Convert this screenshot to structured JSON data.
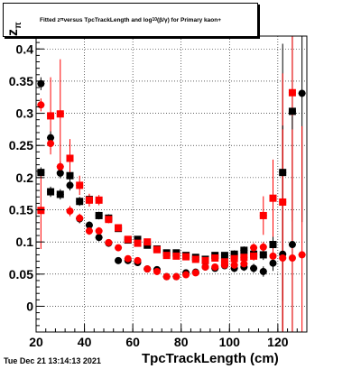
{
  "chart_data": {
    "type": "scatter",
    "title": "Fitted z_π versus TpcTrackLength and log10(β/γ) for Primary kaon+",
    "title_parts": {
      "lead": "Fitted  z",
      "sub": "π",
      "mid": "  versus TpcTrackLength and log",
      "sub2": "10",
      "tail": "(β/γ) for Primary kaon+"
    },
    "xlabel": "TpcTrackLength (cm)",
    "ylabel": "z_π",
    "ylabel_text": "z",
    "xlim": [
      20,
      132
    ],
    "ylim": [
      -0.04,
      0.42
    ],
    "x_ticks": [
      20,
      40,
      60,
      80,
      100,
      120
    ],
    "y_ticks": [
      0,
      0.05,
      0.1,
      0.15,
      0.2,
      0.25,
      0.3,
      0.35,
      0.4
    ],
    "y_tick_labels": [
      "0",
      "0.05",
      "0.1",
      "0.15",
      "0.2",
      "0.25",
      "0.3",
      "0.35",
      "0.4"
    ],
    "grid": true,
    "timestamp": "Tue Dec 21 13:14:13 2021",
    "series": [
      {
        "marker": "square",
        "color": "#000000",
        "points": [
          {
            "x": 22,
            "y": 0.208,
            "err": 0.008
          },
          {
            "x": 26,
            "y": 0.178,
            "err": 0.008
          },
          {
            "x": 30,
            "y": 0.174,
            "err": 0.008
          },
          {
            "x": 34,
            "y": 0.203,
            "err": 0.008
          },
          {
            "x": 38,
            "y": 0.163,
            "err": 0.007
          },
          {
            "x": 42,
            "y": 0.166,
            "err": 0.007
          },
          {
            "x": 46,
            "y": 0.141,
            "err": 0.006
          },
          {
            "x": 50,
            "y": 0.137,
            "err": 0.006
          },
          {
            "x": 54,
            "y": 0.121,
            "err": 0.005
          },
          {
            "x": 58,
            "y": 0.103,
            "err": 0.005
          },
          {
            "x": 62,
            "y": 0.104,
            "err": 0.005
          },
          {
            "x": 66,
            "y": 0.095,
            "err": 0.005
          },
          {
            "x": 70,
            "y": 0.089,
            "err": 0.005
          },
          {
            "x": 74,
            "y": 0.083,
            "err": 0.005
          },
          {
            "x": 78,
            "y": 0.083,
            "err": 0.005
          },
          {
            "x": 82,
            "y": 0.079,
            "err": 0.005
          },
          {
            "x": 86,
            "y": 0.076,
            "err": 0.005
          },
          {
            "x": 90,
            "y": 0.073,
            "err": 0.005
          },
          {
            "x": 94,
            "y": 0.079,
            "err": 0.005
          },
          {
            "x": 98,
            "y": 0.079,
            "err": 0.005
          },
          {
            "x": 102,
            "y": 0.081,
            "err": 0.006
          },
          {
            "x": 106,
            "y": 0.087,
            "err": 0.006
          },
          {
            "x": 110,
            "y": 0.081,
            "err": 0.007
          },
          {
            "x": 114,
            "y": 0.08,
            "err": 0.008
          },
          {
            "x": 118,
            "y": 0.096,
            "err": 0.012
          },
          {
            "x": 122,
            "y": 0.208,
            "err": 0.2
          },
          {
            "x": 126,
            "y": 0.303,
            "err": 0.2
          }
        ]
      },
      {
        "marker": "square",
        "color": "#ff0000",
        "points": [
          {
            "x": 22,
            "y": 0.149,
            "err": 0.06
          },
          {
            "x": 26,
            "y": 0.296,
            "err": 0.06
          },
          {
            "x": 30,
            "y": 0.299,
            "err": 0.085
          },
          {
            "x": 34,
            "y": 0.23,
            "err": 0.03
          },
          {
            "x": 38,
            "y": 0.188,
            "err": 0.015
          },
          {
            "x": 42,
            "y": 0.165,
            "err": 0.01
          },
          {
            "x": 46,
            "y": 0.165,
            "err": 0.008
          },
          {
            "x": 50,
            "y": 0.135,
            "err": 0.006
          },
          {
            "x": 54,
            "y": 0.122,
            "err": 0.005
          },
          {
            "x": 58,
            "y": 0.104,
            "err": 0.005
          },
          {
            "x": 62,
            "y": 0.098,
            "err": 0.005
          },
          {
            "x": 66,
            "y": 0.1,
            "err": 0.005
          },
          {
            "x": 70,
            "y": 0.088,
            "err": 0.005
          },
          {
            "x": 74,
            "y": 0.079,
            "err": 0.005
          },
          {
            "x": 78,
            "y": 0.078,
            "err": 0.005
          },
          {
            "x": 82,
            "y": 0.077,
            "err": 0.005
          },
          {
            "x": 86,
            "y": 0.073,
            "err": 0.005
          },
          {
            "x": 90,
            "y": 0.071,
            "err": 0.005
          },
          {
            "x": 94,
            "y": 0.075,
            "err": 0.005
          },
          {
            "x": 98,
            "y": 0.069,
            "err": 0.005
          },
          {
            "x": 102,
            "y": 0.074,
            "err": 0.006
          },
          {
            "x": 106,
            "y": 0.076,
            "err": 0.006
          },
          {
            "x": 110,
            "y": 0.078,
            "err": 0.007
          },
          {
            "x": 114,
            "y": 0.141,
            "err": 0.03
          },
          {
            "x": 118,
            "y": 0.168,
            "err": 0.06
          },
          {
            "x": 122,
            "y": 0.162,
            "err": 0.2
          },
          {
            "x": 126,
            "y": 0.332,
            "err": 0.2
          }
        ]
      },
      {
        "marker": "circle",
        "color": "#000000",
        "points": [
          {
            "x": 22,
            "y": 0.346,
            "err": 0.01
          },
          {
            "x": 26,
            "y": 0.262,
            "err": 0.01
          },
          {
            "x": 30,
            "y": 0.207,
            "err": 0.008
          },
          {
            "x": 34,
            "y": 0.188,
            "err": 0.008
          },
          {
            "x": 38,
            "y": 0.136,
            "err": 0.007
          },
          {
            "x": 42,
            "y": 0.126,
            "err": 0.006
          },
          {
            "x": 46,
            "y": 0.107,
            "err": 0.006
          },
          {
            "x": 50,
            "y": 0.098,
            "err": 0.005
          },
          {
            "x": 54,
            "y": 0.071,
            "err": 0.005
          },
          {
            "x": 58,
            "y": 0.071,
            "err": 0.005
          },
          {
            "x": 62,
            "y": 0.068,
            "err": 0.005
          },
          {
            "x": 66,
            "y": 0.058,
            "err": 0.005
          },
          {
            "x": 70,
            "y": 0.057,
            "err": 0.005
          },
          {
            "x": 74,
            "y": 0.046,
            "err": 0.005
          },
          {
            "x": 78,
            "y": 0.046,
            "err": 0.005
          },
          {
            "x": 82,
            "y": 0.052,
            "err": 0.005
          },
          {
            "x": 86,
            "y": 0.053,
            "err": 0.005
          },
          {
            "x": 90,
            "y": 0.061,
            "err": 0.005
          },
          {
            "x": 94,
            "y": 0.059,
            "err": 0.005
          },
          {
            "x": 98,
            "y": 0.063,
            "err": 0.005
          },
          {
            "x": 102,
            "y": 0.059,
            "err": 0.006
          },
          {
            "x": 106,
            "y": 0.061,
            "err": 0.006
          },
          {
            "x": 110,
            "y": 0.059,
            "err": 0.007
          },
          {
            "x": 114,
            "y": 0.054,
            "err": 0.008
          },
          {
            "x": 118,
            "y": 0.067,
            "err": 0.012
          },
          {
            "x": 122,
            "y": 0.081,
            "err": 0.2
          },
          {
            "x": 126,
            "y": 0.096,
            "err": 0.2
          },
          {
            "x": 130,
            "y": 0.331,
            "err": 0.2
          }
        ]
      },
      {
        "marker": "circle",
        "color": "#ff0000",
        "points": [
          {
            "x": 22,
            "y": 0.313,
            "err": 0.01
          },
          {
            "x": 26,
            "y": 0.253,
            "err": 0.01
          },
          {
            "x": 30,
            "y": 0.217,
            "err": 0.008
          },
          {
            "x": 34,
            "y": 0.148,
            "err": 0.008
          },
          {
            "x": 38,
            "y": 0.137,
            "err": 0.007
          },
          {
            "x": 42,
            "y": 0.117,
            "err": 0.006
          },
          {
            "x": 46,
            "y": 0.117,
            "err": 0.006
          },
          {
            "x": 50,
            "y": 0.099,
            "err": 0.005
          },
          {
            "x": 54,
            "y": 0.091,
            "err": 0.005
          },
          {
            "x": 58,
            "y": 0.074,
            "err": 0.005
          },
          {
            "x": 62,
            "y": 0.071,
            "err": 0.005
          },
          {
            "x": 66,
            "y": 0.058,
            "err": 0.005
          },
          {
            "x": 70,
            "y": 0.054,
            "err": 0.005
          },
          {
            "x": 74,
            "y": 0.046,
            "err": 0.005
          },
          {
            "x": 78,
            "y": 0.046,
            "err": 0.005
          },
          {
            "x": 82,
            "y": 0.049,
            "err": 0.005
          },
          {
            "x": 86,
            "y": 0.052,
            "err": 0.005
          },
          {
            "x": 90,
            "y": 0.061,
            "err": 0.005
          },
          {
            "x": 94,
            "y": 0.061,
            "err": 0.005
          },
          {
            "x": 98,
            "y": 0.064,
            "err": 0.005
          },
          {
            "x": 102,
            "y": 0.064,
            "err": 0.006
          },
          {
            "x": 106,
            "y": 0.066,
            "err": 0.006
          },
          {
            "x": 110,
            "y": 0.091,
            "err": 0.007
          },
          {
            "x": 114,
            "y": 0.092,
            "err": 0.008
          },
          {
            "x": 118,
            "y": 0.078,
            "err": 0.012
          },
          {
            "x": 122,
            "y": 0.075,
            "err": 0.2
          },
          {
            "x": 126,
            "y": 0.075,
            "err": 0.2
          },
          {
            "x": 130,
            "y": 0.08,
            "err": 0.2
          }
        ]
      }
    ]
  }
}
